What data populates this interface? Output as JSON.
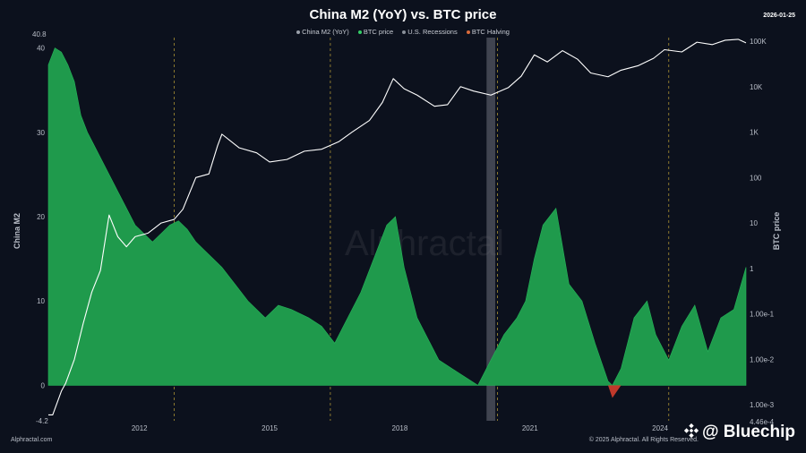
{
  "title": "China M2 (YoY) vs. BTC price",
  "date": "2026-01-25",
  "legend": [
    {
      "label": "China M2 (YoY)",
      "color": "#9aa0aa"
    },
    {
      "label": "BTC price",
      "color": "#33cc66"
    },
    {
      "label": "U.S. Recessions",
      "color": "#8a8f99"
    },
    {
      "label": "BTC Halving",
      "color": "#d96a3a"
    }
  ],
  "watermark": "Alphractal",
  "source": "Alphractal.com",
  "copyright": "© 2025 Alphractal. All Rights Reserved.",
  "brand_overlay": "@ Bluechip",
  "chart_data": {
    "type": "area",
    "title": "China M2 (YoY) vs. BTC price",
    "x_range": [
      2010.0,
      2026.08
    ],
    "x_ticks": [
      "2012",
      "2015",
      "2018",
      "2021",
      "2024"
    ],
    "left_axis": {
      "label": "China M2",
      "range": [
        -4.2,
        40.8
      ],
      "tick_values": [
        0,
        10,
        20,
        30,
        40
      ],
      "top_label": "40.8",
      "bottom_label": "-4.2"
    },
    "right_axis": {
      "label": "BTC price",
      "scale": "log",
      "range": [
        0.000446,
        100000
      ],
      "tick_labels": [
        "100K",
        "10K",
        "1K",
        "100",
        "10",
        "1",
        "1.00e-1",
        "1.00e-2",
        "1.00e-3"
      ],
      "bottom_label": "4.46e-4"
    },
    "series": [
      {
        "name": "China M2 (YoY)",
        "color_positive": "#1f9a4c",
        "color_negative": "#c0392b",
        "x": [
          2010.0,
          2010.15,
          2010.3,
          2010.45,
          2010.6,
          2010.75,
          2010.9,
          2011.0,
          2011.2,
          2011.4,
          2011.6,
          2011.8,
          2012.0,
          2012.2,
          2012.4,
          2012.6,
          2012.8,
          2013.0,
          2013.2,
          2013.4,
          2013.6,
          2013.8,
          2014.0,
          2014.3,
          2014.6,
          2015.0,
          2015.3,
          2015.6,
          2016.0,
          2016.3,
          2016.6,
          2016.9,
          2017.2,
          2017.5,
          2017.8,
          2018.0,
          2018.2,
          2018.5,
          2018.8,
          2019.0,
          2019.3,
          2019.6,
          2019.9,
          2020.2,
          2020.5,
          2020.8,
          2021.0,
          2021.2,
          2021.4,
          2021.7,
          2022.0,
          2022.3,
          2022.6,
          2022.8,
          2022.9,
          2023.0,
          2023.2,
          2023.5,
          2023.8,
          2024.0,
          2024.3,
          2024.6,
          2024.9,
          2025.2,
          2025.5,
          2025.8,
          2026.08
        ],
        "values": [
          38,
          40,
          39.5,
          38,
          36,
          32,
          30,
          29,
          27,
          25,
          23,
          21,
          19,
          18,
          17,
          18,
          19,
          19.5,
          18.5,
          17,
          16,
          15,
          14,
          12,
          10,
          8,
          9.5,
          9,
          8,
          7,
          5,
          8,
          11,
          15,
          19,
          20,
          14,
          8,
          5,
          3,
          2,
          1,
          0,
          3,
          6,
          8,
          10,
          15,
          19,
          21,
          12,
          10,
          5,
          2,
          0.5,
          -1.5,
          2,
          8,
          10,
          6,
          3,
          7,
          9.5,
          4,
          8,
          9,
          14
        ],
        "axis": "left"
      },
      {
        "name": "BTC price",
        "color": "#ffffff",
        "x": [
          2010.0,
          2010.1,
          2010.3,
          2010.4,
          2010.6,
          2010.8,
          2011.0,
          2011.2,
          2011.4,
          2011.6,
          2011.8,
          2012.0,
          2012.3,
          2012.6,
          2012.9,
          2013.1,
          2013.4,
          2013.7,
          2013.9,
          2014.0,
          2014.4,
          2014.8,
          2015.1,
          2015.5,
          2015.9,
          2016.3,
          2016.7,
          2017.0,
          2017.4,
          2017.7,
          2017.95,
          2018.2,
          2018.5,
          2018.9,
          2019.2,
          2019.5,
          2019.8,
          2020.2,
          2020.6,
          2020.9,
          2021.2,
          2021.5,
          2021.85,
          2022.2,
          2022.5,
          2022.9,
          2023.2,
          2023.6,
          2023.95,
          2024.2,
          2024.6,
          2024.95,
          2025.3,
          2025.6,
          2025.9,
          2026.08
        ],
        "values": [
          0.0006,
          0.0006,
          0.002,
          0.003,
          0.01,
          0.06,
          0.3,
          0.9,
          15,
          5,
          3,
          5,
          6,
          10,
          12,
          20,
          100,
          120,
          500,
          900,
          450,
          350,
          220,
          250,
          380,
          420,
          620,
          1000,
          1800,
          4500,
          15000,
          9000,
          6500,
          3700,
          4000,
          10000,
          8000,
          6500,
          9500,
          17000,
          50000,
          35000,
          62000,
          40000,
          20000,
          16500,
          23000,
          29000,
          42000,
          65000,
          58000,
          95000,
          84000,
          105000,
          110000,
          92000
        ],
        "axis": "right"
      }
    ],
    "halvings": [
      2012.9,
      2016.5,
      2020.35,
      2024.3
    ],
    "recessions": [
      [
        2020.1,
        2020.3
      ]
    ]
  }
}
